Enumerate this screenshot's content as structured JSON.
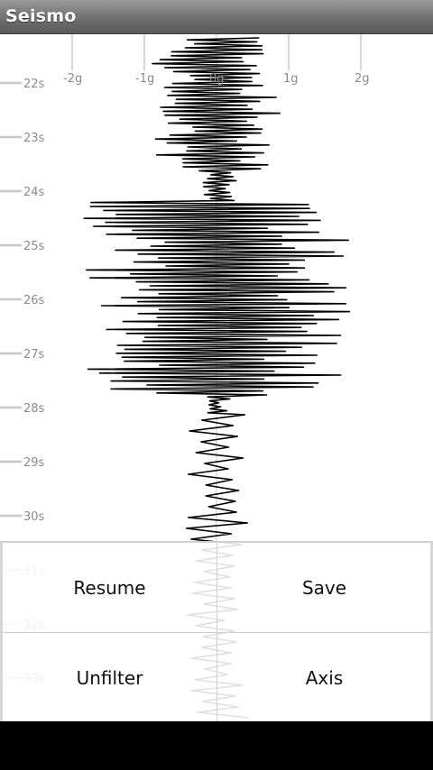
{
  "app": {
    "title": "Seismo"
  },
  "axis": {
    "g_labels": [
      "-2g",
      "-1g",
      "0g",
      "1g",
      "2g"
    ],
    "time_labels": [
      "22s",
      "23s",
      "24s",
      "25s",
      "26s",
      "27s",
      "28s",
      "29s",
      "30s",
      "31s",
      "32s",
      "33s"
    ]
  },
  "menu": {
    "resume_label": "Resume",
    "save_label": "Save",
    "unfilter_label": "Unfilter",
    "axis_label": "Axis"
  },
  "colors": {
    "trace": "#000000",
    "gridline": "#c8c8c8",
    "label": "#8a8a8a"
  }
}
